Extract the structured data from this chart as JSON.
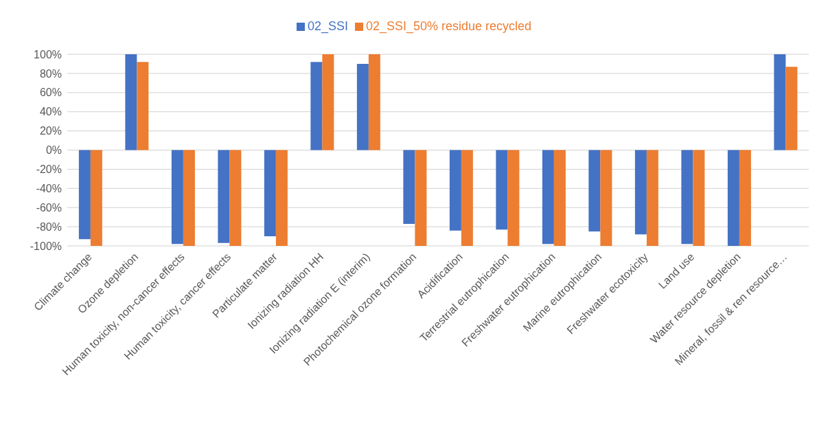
{
  "chart_data": {
    "type": "bar",
    "categories": [
      "Climate change",
      "Ozone depletion",
      "Human toxicity, non-cancer effects",
      "Human toxicity, cancer effects",
      "Particulate matter",
      "Ionizing radiation HH",
      "Ionizing radiation E (interim)",
      "Photochemical ozone formation",
      "Acidification",
      "Terrestrial eutrophication",
      "Freshwater eutrophication",
      "Marine eutrophication",
      "Freshwater ecotoxicity",
      "Land use",
      "Water resource depletion",
      "Mineral, fossil & ren resource…"
    ],
    "series": [
      {
        "name": "02_SSI",
        "color": "#4472c4",
        "values": [
          -93,
          100,
          -98,
          -97,
          -90,
          92,
          90,
          -77,
          -84,
          -83,
          -98,
          -85,
          -88,
          -98,
          -100,
          100
        ]
      },
      {
        "name": "02_SSI_50% residue recycled",
        "color": "#ed7d31",
        "values": [
          -100,
          92,
          -100,
          -100,
          -100,
          100,
          100,
          -100,
          -100,
          -100,
          -100,
          -100,
          -100,
          -100,
          -100,
          87
        ]
      }
    ],
    "ylim": [
      -100,
      100
    ],
    "yticks": [
      {
        "value": -100,
        "label": "-100%"
      },
      {
        "value": -80,
        "label": "-80%"
      },
      {
        "value": -60,
        "label": "-60%"
      },
      {
        "value": -40,
        "label": "-40%"
      },
      {
        "value": -20,
        "label": "-20%"
      },
      {
        "value": 0,
        "label": "0%"
      },
      {
        "value": 20,
        "label": "20%"
      },
      {
        "value": 40,
        "label": "40%"
      },
      {
        "value": 60,
        "label": "60%"
      },
      {
        "value": 80,
        "label": "80%"
      },
      {
        "value": 100,
        "label": "100%"
      }
    ],
    "grid": "y",
    "legend": "top"
  }
}
